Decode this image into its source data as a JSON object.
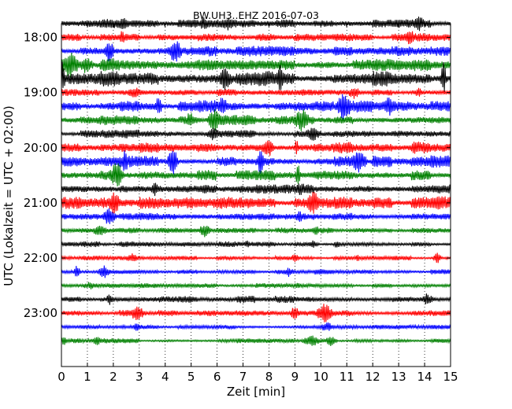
{
  "chart_data": {
    "type": "line",
    "title": "BW.UH3..EHZ 2016-07-03",
    "xlabel": "Zeit  [min]",
    "ylabel": "UTC (Lokalzeit = UTC + 02:00)",
    "xlim": [
      0,
      15
    ],
    "x_ticks": [
      "0",
      "1",
      "2",
      "3",
      "4",
      "5",
      "6",
      "7",
      "8",
      "9",
      "10",
      "11",
      "12",
      "13",
      "14",
      "15"
    ],
    "y_ticks": [
      "18:00",
      "19:00",
      "20:00",
      "21:00",
      "22:00",
      "23:00"
    ],
    "y_range_hours": [
      "17:45",
      "23:58"
    ],
    "grid": "vertical dotted at each minute",
    "trace_interval_minutes": 15,
    "trace_count": 24,
    "trace_colors": [
      "#000000",
      "#ff0000",
      "#0000ff",
      "#008000"
    ],
    "trace_start_times": [
      "17:45",
      "18:00",
      "18:15",
      "18:30",
      "18:45",
      "19:00",
      "19:15",
      "19:30",
      "19:45",
      "20:00",
      "20:15",
      "20:30",
      "20:45",
      "21:00",
      "21:15",
      "21:30",
      "21:45",
      "22:00",
      "22:15",
      "22:30",
      "22:45",
      "23:00",
      "23:15",
      "23:30"
    ],
    "trace_amplitude": [
      0.55,
      0.5,
      0.65,
      0.75,
      0.95,
      0.5,
      0.75,
      0.65,
      0.55,
      0.75,
      0.75,
      0.65,
      0.6,
      0.8,
      0.45,
      0.35,
      0.35,
      0.3,
      0.35,
      0.3,
      0.45,
      0.5,
      0.3,
      0.3
    ]
  }
}
